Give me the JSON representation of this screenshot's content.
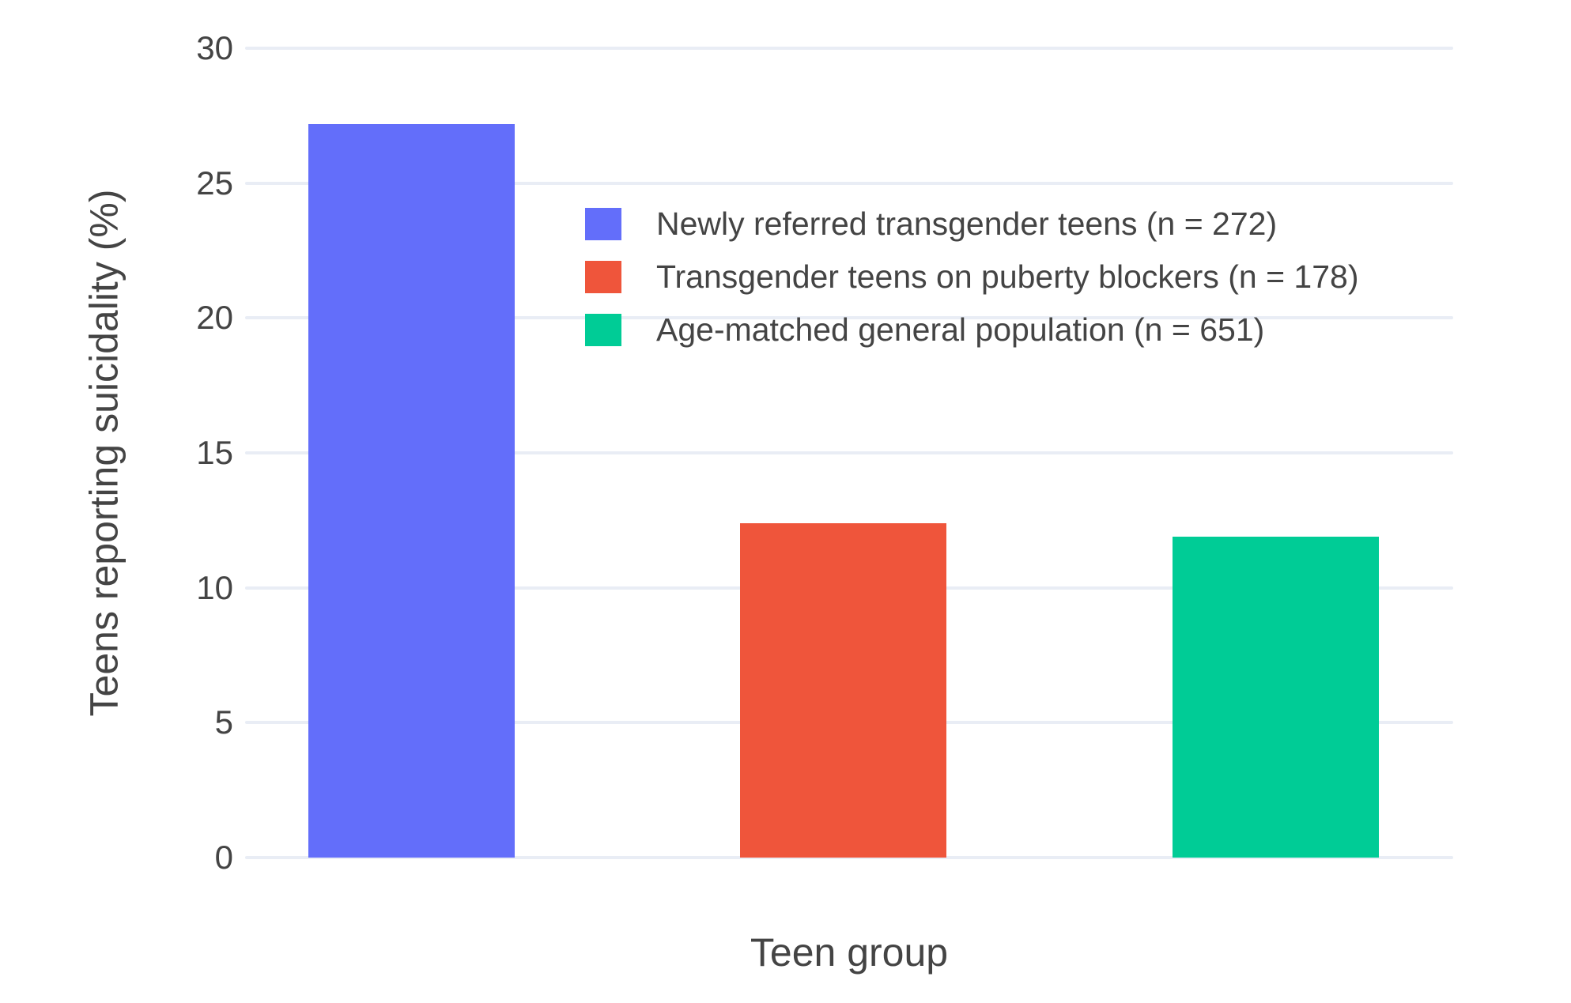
{
  "figure": {
    "background": "#ffffff"
  },
  "colors": {
    "grid": "#E9EDF5",
    "text": "#444444"
  },
  "chart_data": {
    "type": "bar",
    "title": "",
    "xlabel": "Teen group",
    "ylabel": "Teens reporting suicidality (%)",
    "categories": [
      "Newly referred transgender teens (n = 272)",
      "Transgender teens on puberty blockers (n = 178)",
      "Age-matched general population (n = 651)"
    ],
    "values": [
      27.2,
      12.4,
      11.9
    ],
    "bar_colors": [
      "#636EFA",
      "#EF553B",
      "#00CC96"
    ],
    "ylim": [
      0,
      30
    ],
    "yticks": [
      0,
      5,
      10,
      15,
      20,
      25,
      30
    ],
    "grid": true,
    "legend_position": "inside-top-center-right"
  }
}
